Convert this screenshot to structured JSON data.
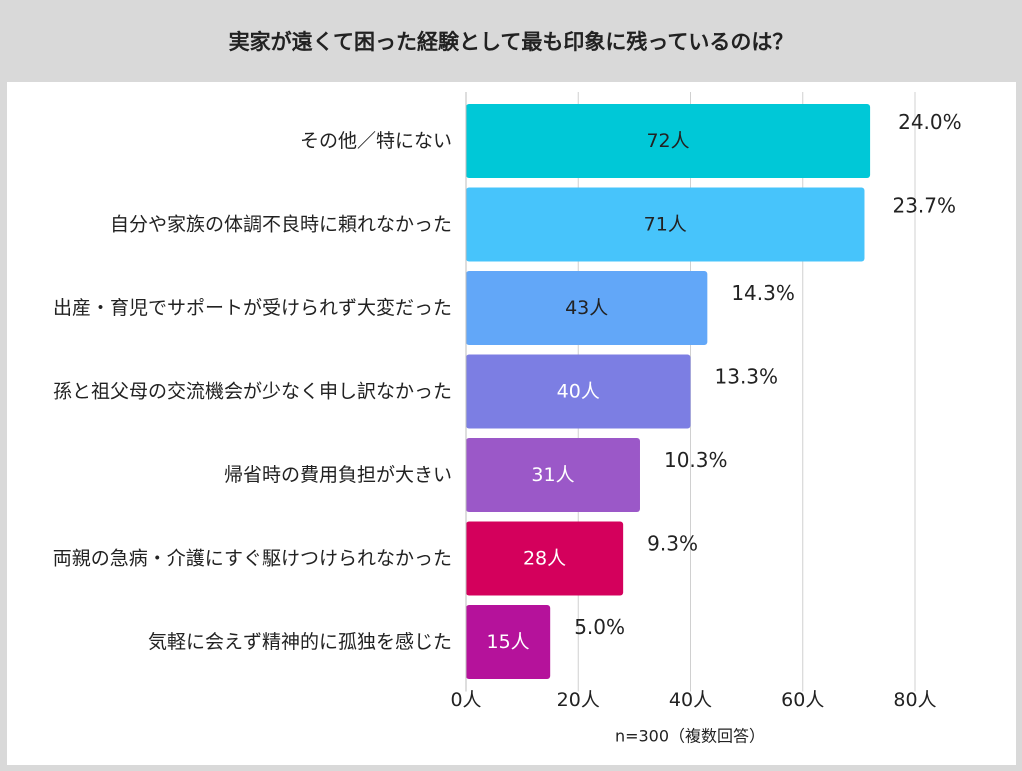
{
  "title": "実家が遠くて困った経験として最も印象に残っているのは？",
  "note": "n=300（複数回答）",
  "chart_data": {
    "type": "bar",
    "orientation": "horizontal",
    "title": "実家が遠くて困った経験として最も印象に残っているのは？",
    "categories": [
      "その他／特にない",
      "自分や家族の体調不良時に頼れなかった",
      "出産・育児でサポートが受けられず大変だった",
      "孫と祖父母の交流機会が少なく申し訳なかった",
      "帰省時の費用負担が大きい",
      "両親の急病・介護にすぐ駆けつけられなかった",
      "気軽に会えず精神的に孤独を感じた"
    ],
    "values": [
      72,
      71,
      43,
      40,
      31,
      28,
      15
    ],
    "value_labels": [
      "72人",
      "71人",
      "43人",
      "40人",
      "31人",
      "28人",
      "15人"
    ],
    "percent_labels": [
      "24.0%",
      "23.7%",
      "14.3%",
      "13.3%",
      "10.3%",
      "9.3%",
      "5.0%"
    ],
    "colors": [
      "#00c8d7",
      "#47c4fb",
      "#62a7f8",
      "#7c7ee3",
      "#9b58c8",
      "#d4005c",
      "#b5129b"
    ],
    "label_colors": [
      "#222222",
      "#222222",
      "#222222",
      "#ffffff",
      "#ffffff",
      "#ffffff",
      "#ffffff"
    ],
    "xlim": [
      0,
      80
    ],
    "x_ticks": [
      0,
      20,
      40,
      60,
      80
    ],
    "x_tick_labels": [
      "0人",
      "20人",
      "40人",
      "60人",
      "80人"
    ],
    "grid": true,
    "xlabel": "",
    "ylabel": ""
  }
}
